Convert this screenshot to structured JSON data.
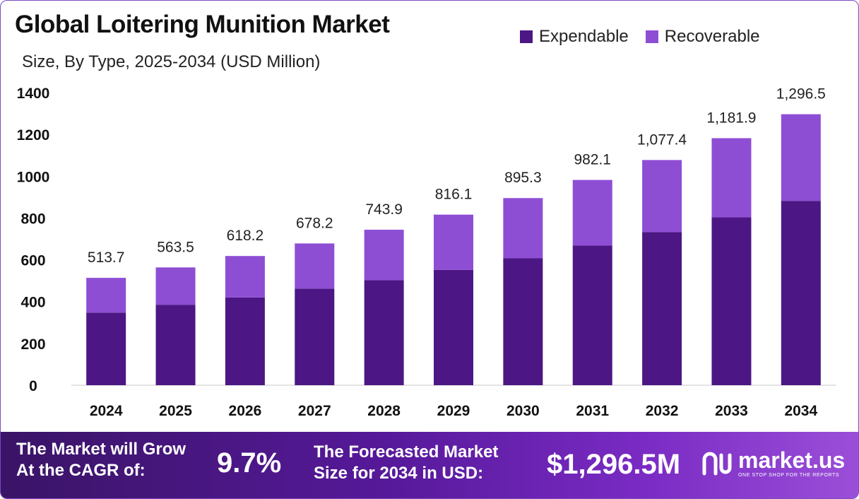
{
  "header": {
    "title": "Global Loitering Munition Market",
    "subtitle": "Size, By Type, 2025-2034 (USD Million)"
  },
  "legend": {
    "items": [
      {
        "label": "Expendable",
        "color": "#4c1784"
      },
      {
        "label": "Recoverable",
        "color": "#8e4ed4"
      }
    ]
  },
  "chart_data": {
    "type": "bar",
    "stacked": true,
    "categories": [
      "2024",
      "2025",
      "2026",
      "2027",
      "2028",
      "2029",
      "2030",
      "2031",
      "2032",
      "2033",
      "2034"
    ],
    "series": [
      {
        "name": "Expendable",
        "color": "#4c1784",
        "values": [
          347,
          385,
          420,
          462,
          503,
          552,
          607,
          668,
          733,
          803,
          882
        ]
      },
      {
        "name": "Recoverable",
        "color": "#8e4ed4",
        "values": [
          166.7,
          178.5,
          198.2,
          216.2,
          240.9,
          264.1,
          288.3,
          314.1,
          344.4,
          378.9,
          414.5
        ]
      }
    ],
    "totals": [
      "513.7",
      "563.5",
      "618.2",
      "678.2",
      "743.9",
      "816.1",
      "895.3",
      "982.1",
      "1,077.4",
      "1,181.9",
      "1,296.5"
    ],
    "ylim": [
      0,
      1400
    ],
    "yticks": [
      "0",
      "200",
      "400",
      "600",
      "800",
      "1000",
      "1200",
      "1400"
    ],
    "grid": false,
    "legend_position": "top-right"
  },
  "footer": {
    "cagr_label_line1": "The Market will Grow",
    "cagr_label_line2": "At the CAGR of:",
    "cagr_value": "9.7%",
    "forecast_label_line1": "The Forecasted Market",
    "forecast_label_line2": "Size for 2034 in USD:",
    "forecast_value": "$1,296.5M",
    "brand_name": "market.us",
    "brand_tagline": "ONE STOP SHOP FOR THE REPORTS"
  }
}
